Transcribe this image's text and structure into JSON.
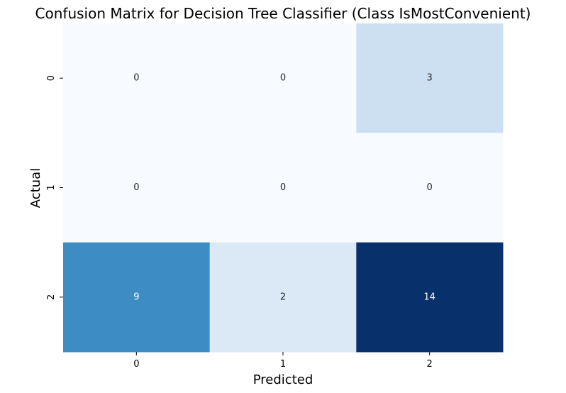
{
  "chart_data": {
    "type": "heatmap",
    "title": "Confusion Matrix for Decision Tree Classifier (Class IsMostConvenient)",
    "xlabel": "Predicted",
    "ylabel": "Actual",
    "x_categories": [
      "0",
      "1",
      "2"
    ],
    "y_categories": [
      "0",
      "1",
      "2"
    ],
    "values": [
      [
        0,
        0,
        3
      ],
      [
        0,
        0,
        0
      ],
      [
        9,
        2,
        14
      ]
    ],
    "value_range": [
      0,
      14
    ],
    "colormap": "Blues",
    "colorbar": false
  }
}
